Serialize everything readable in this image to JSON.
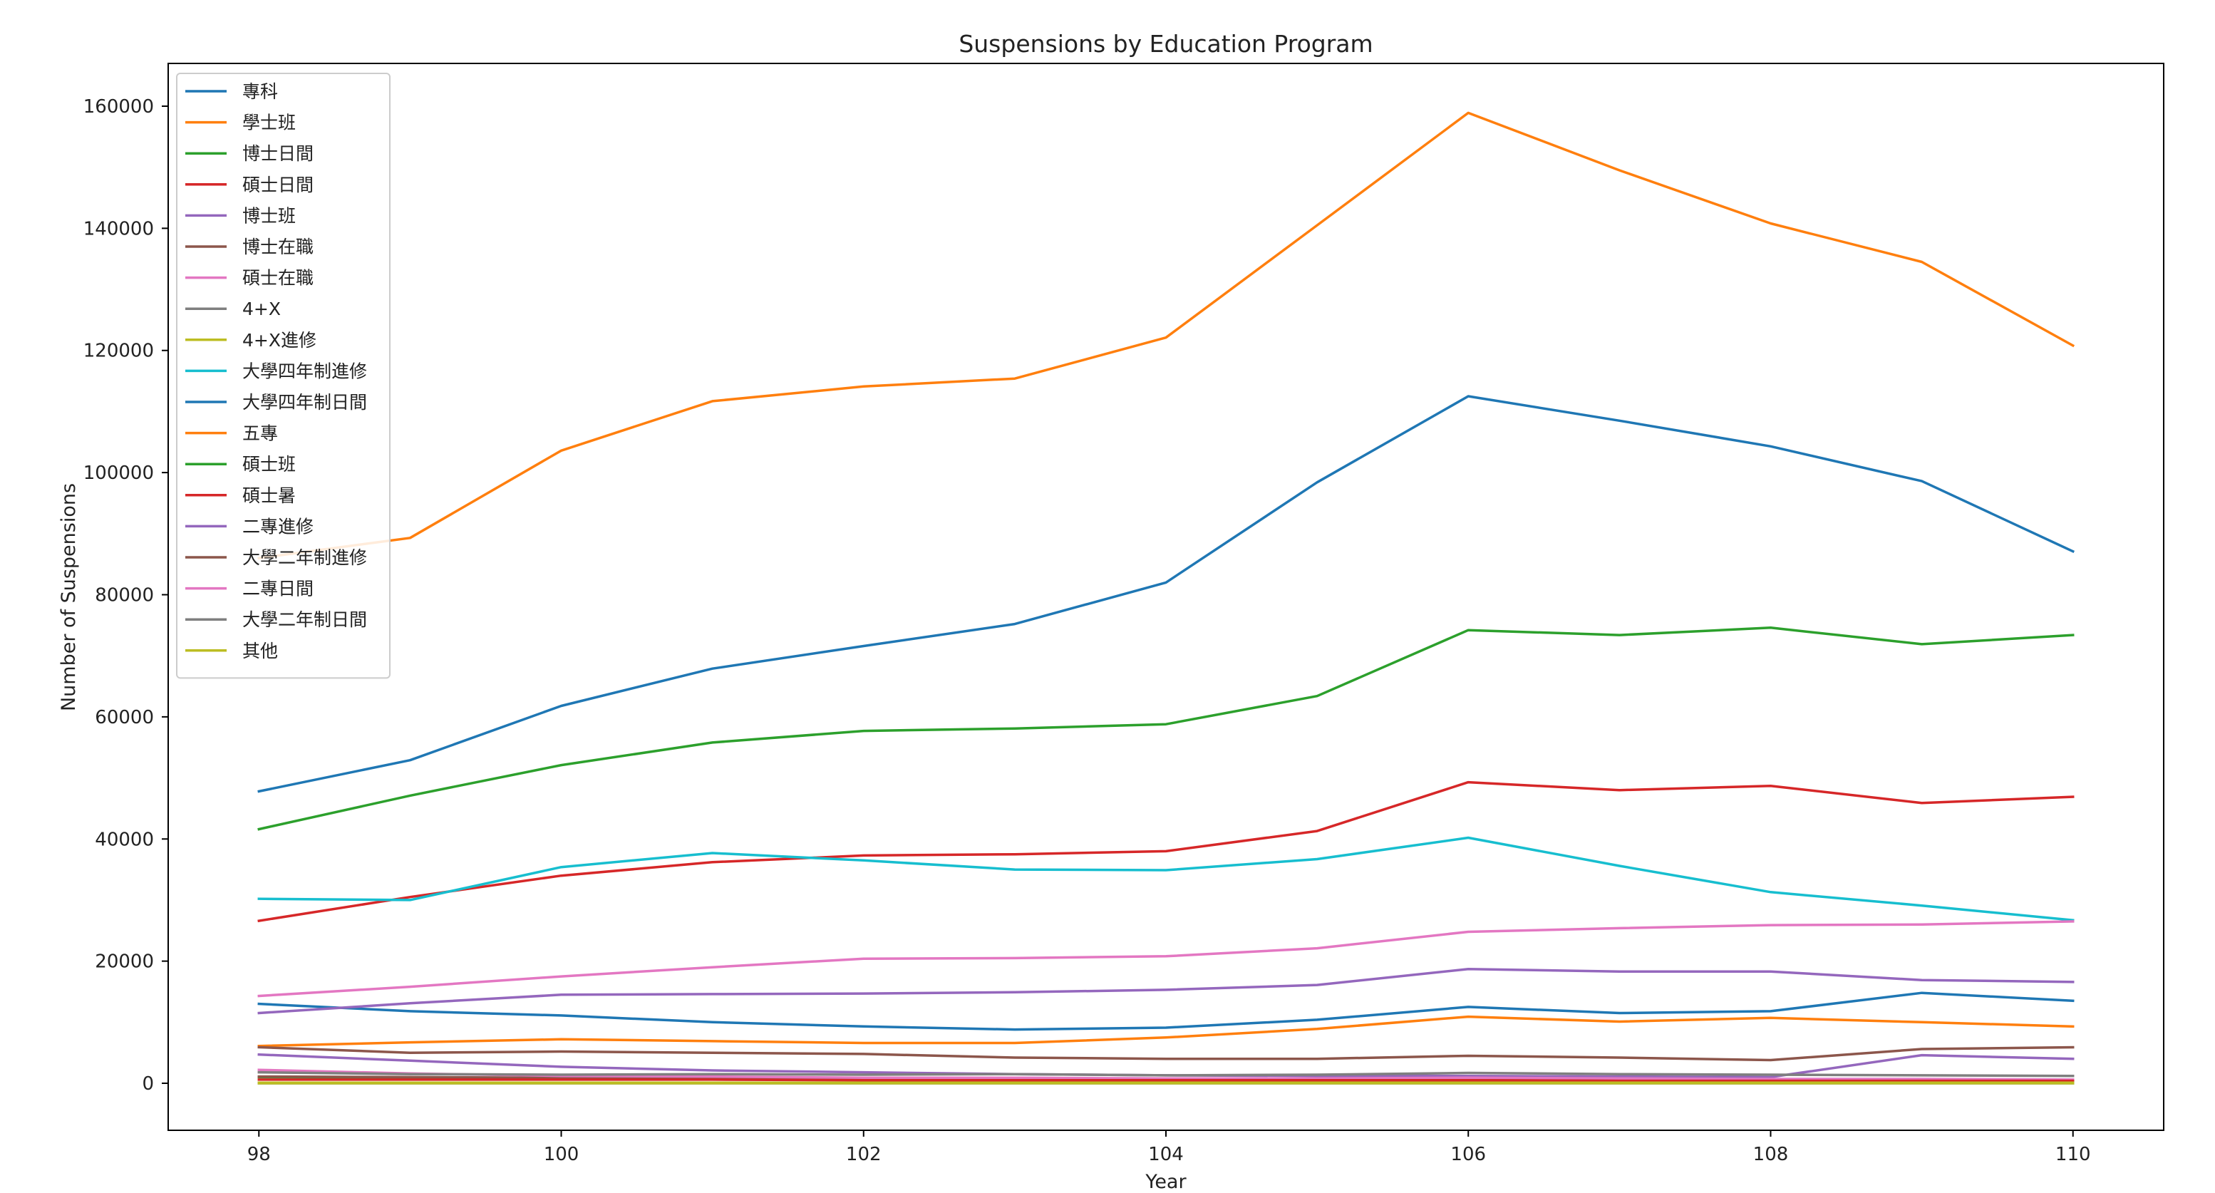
{
  "chart_data": {
    "type": "line",
    "title": "Suspensions by Education Program",
    "xlabel": "Year",
    "ylabel": "Number of Suspensions",
    "x": [
      98,
      99,
      100,
      101,
      102,
      103,
      104,
      105,
      106,
      107,
      108,
      109,
      110
    ],
    "xticks": [
      98,
      100,
      102,
      104,
      106,
      108,
      110
    ],
    "yticks": [
      0,
      20000,
      40000,
      60000,
      80000,
      100000,
      120000,
      140000,
      160000
    ],
    "xlim": [
      97.4,
      110.6
    ],
    "ylim": [
      -7700,
      167000
    ],
    "grid": false,
    "legend_position": "top-left",
    "series": [
      {
        "name": "專科",
        "color": "#1f77b4",
        "values": [
          13000,
          11800,
          11100,
          10000,
          9300,
          8800,
          9100,
          10400,
          12500,
          11500,
          11800,
          14800,
          13500
        ]
      },
      {
        "name": "學士班",
        "color": "#ff7f0e",
        "values": [
          86000,
          89300,
          103600,
          111700,
          114100,
          115400,
          122100,
          140500,
          158900,
          149500,
          140800,
          134500,
          120800
        ]
      },
      {
        "name": "博士日間",
        "color": "#2ca02c",
        "values": [
          1000,
          900,
          800,
          900,
          700,
          600,
          600,
          500,
          500,
          400,
          400,
          400,
          300
        ]
      },
      {
        "name": "碩士日間",
        "color": "#d62728",
        "values": [
          26600,
          30500,
          34000,
          36200,
          37300,
          37500,
          38000,
          41300,
          49300,
          48000,
          48700,
          45900,
          46900
        ]
      },
      {
        "name": "博士班",
        "color": "#9467bd",
        "values": [
          4700,
          3700,
          2700,
          2100,
          1800,
          1500,
          1300,
          1200,
          1200,
          1100,
          1000,
          4600,
          4000
        ]
      },
      {
        "name": "博士在職",
        "color": "#8c564b",
        "values": [
          1100,
          1000,
          900,
          900,
          800,
          700,
          600,
          600,
          600,
          500,
          500,
          500,
          400
        ]
      },
      {
        "name": "碩士在職",
        "color": "#e377c2",
        "values": [
          2200,
          1600,
          1200,
          1100,
          900,
          900,
          800,
          800,
          900,
          800,
          700,
          700,
          600
        ]
      },
      {
        "name": "4+X",
        "color": "#7f7f7f",
        "values": [
          0,
          0,
          0,
          0,
          0,
          0,
          0,
          0,
          0,
          0,
          0,
          0,
          0
        ]
      },
      {
        "name": "4+X進修",
        "color": "#bcbd22",
        "values": [
          0,
          0,
          0,
          0,
          0,
          0,
          0,
          0,
          0,
          0,
          0,
          0,
          0
        ]
      },
      {
        "name": "大學四年制進修",
        "color": "#17becf",
        "values": [
          30200,
          30000,
          35400,
          37700,
          36500,
          35000,
          34900,
          36700,
          40200,
          35600,
          31300,
          29100,
          26700
        ]
      },
      {
        "name": "大學四年制日間",
        "color": "#1f77b4",
        "values": [
          47800,
          52900,
          61800,
          67900,
          71600,
          75200,
          82000,
          98400,
          112500,
          108500,
          104300,
          98600,
          87100
        ]
      },
      {
        "name": "五專",
        "color": "#ff7f0e",
        "values": [
          6100,
          6700,
          7200,
          6900,
          6600,
          6600,
          7500,
          8900,
          10900,
          10100,
          10700,
          10000,
          9300
        ]
      },
      {
        "name": "碩士班",
        "color": "#2ca02c",
        "values": [
          41600,
          47100,
          52100,
          55800,
          57700,
          58100,
          58800,
          63400,
          74200,
          73400,
          74600,
          71900,
          73400
        ]
      },
      {
        "name": "碩士暑",
        "color": "#d62728",
        "values": [
          600,
          600,
          600,
          600,
          500,
          500,
          500,
          500,
          500,
          400,
          400,
          400,
          400
        ]
      },
      {
        "name": "二專進修",
        "color": "#9467bd",
        "values": [
          11500,
          13100,
          14500,
          14600,
          14700,
          14900,
          15300,
          16100,
          18700,
          18300,
          18300,
          16900,
          16600
        ]
      },
      {
        "name": "大學二年制進修",
        "color": "#8c564b",
        "values": [
          5900,
          5000,
          5200,
          5000,
          4800,
          4200,
          4000,
          4000,
          4500,
          4200,
          3800,
          5600,
          5900
        ]
      },
      {
        "name": "二專日間",
        "color": "#e377c2",
        "values": [
          14300,
          15800,
          17500,
          19000,
          20400,
          20500,
          20800,
          22100,
          24800,
          25400,
          25900,
          26000,
          26500
        ]
      },
      {
        "name": "大學二年制日間",
        "color": "#7f7f7f",
        "values": [
          1800,
          1500,
          1400,
          1500,
          1400,
          1500,
          1300,
          1400,
          1700,
          1500,
          1400,
          1300,
          1200
        ]
      },
      {
        "name": "其他",
        "color": "#bcbd22",
        "values": [
          100,
          100,
          100,
          100,
          100,
          100,
          100,
          100,
          100,
          100,
          100,
          100,
          100
        ]
      }
    ]
  }
}
